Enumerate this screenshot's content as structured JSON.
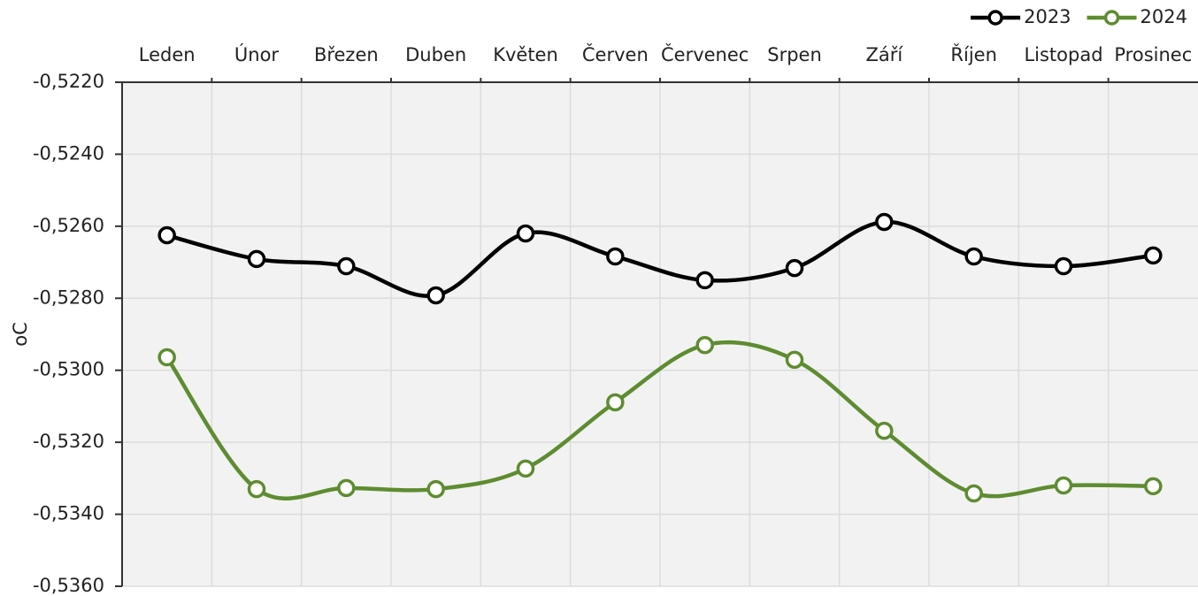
{
  "chart_data": {
    "type": "line",
    "y_axis_label": "oC",
    "categories": [
      "Leden",
      "Únor",
      "Březen",
      "Duben",
      "Květen",
      "Červen",
      "Červenec",
      "Srpen",
      "Září",
      "Říjen",
      "Listopad",
      "Prosinec"
    ],
    "series": [
      {
        "name": "2023",
        "color": "#000000",
        "values": [
          -0.52625,
          -0.52691,
          -0.52711,
          -0.52792,
          -0.5262,
          -0.52684,
          -0.5275,
          -0.52716,
          -0.52588,
          -0.52684,
          -0.52711,
          -0.52681
        ]
      },
      {
        "name": "2024",
        "color": "#5e8c31",
        "values": [
          -0.52964,
          -0.5333,
          -0.53327,
          -0.5333,
          -0.53273,
          -0.53089,
          -0.5293,
          -0.52971,
          -0.53168,
          -0.53342,
          -0.5332,
          -0.53322
        ]
      }
    ],
    "ylim": [
      -0.536,
      -0.522
    ],
    "yticks": [
      {
        "value": -0.536,
        "label": "-0,5360"
      },
      {
        "value": -0.534,
        "label": "-0,5340"
      },
      {
        "value": -0.532,
        "label": "-0,5320"
      },
      {
        "value": -0.53,
        "label": "-0,5300"
      },
      {
        "value": -0.528,
        "label": "-0,5280"
      },
      {
        "value": -0.526,
        "label": "-0,5260"
      },
      {
        "value": -0.524,
        "label": "-0,5240"
      },
      {
        "value": -0.522,
        "label": "-0,5220"
      }
    ],
    "grid": true,
    "smooth": true,
    "legend": "top-right"
  }
}
